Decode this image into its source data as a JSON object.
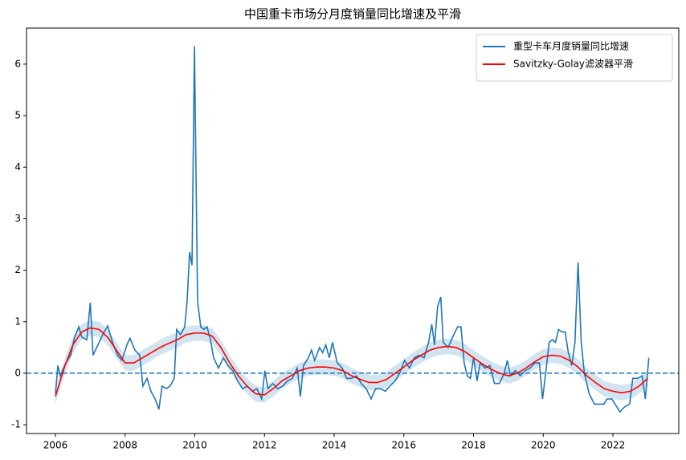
{
  "chart_data": {
    "type": "line",
    "title": "中国重卡市场分月度销量同比增速及平滑",
    "xlim": [
      2005.17,
      2023.89
    ],
    "ylim": [
      -1.17,
      6.7
    ],
    "xticks": [
      2006,
      2008,
      2010,
      2012,
      2014,
      2016,
      2018,
      2020,
      2022
    ],
    "yticks": [
      -1,
      0,
      1,
      2,
      3,
      4,
      5,
      6
    ],
    "legend": "upper right",
    "hline": {
      "value": 0,
      "color": "#1f77b4",
      "style": "dashed"
    },
    "series": [
      {
        "name": "重型卡车月度销量同比增速",
        "color": "#1f77b4",
        "x": [
          2006.0,
          2006.07,
          2006.14,
          2006.3,
          2006.44,
          2006.55,
          2006.67,
          2006.76,
          2006.9,
          2007.0,
          2007.08,
          2007.22,
          2007.36,
          2007.5,
          2007.64,
          2007.78,
          2007.91,
          2008.05,
          2008.14,
          2008.28,
          2008.42,
          2008.51,
          2008.63,
          2008.74,
          2008.86,
          2008.97,
          2009.06,
          2009.18,
          2009.29,
          2009.41,
          2009.48,
          2009.59,
          2009.71,
          2009.78,
          2009.85,
          2009.92,
          2009.99,
          2010.08,
          2010.17,
          2010.26,
          2010.35,
          2010.45,
          2010.54,
          2010.68,
          2010.82,
          2010.95,
          2011.09,
          2011.23,
          2011.37,
          2011.51,
          2011.65,
          2011.78,
          2011.92,
          2012.01,
          2012.1,
          2012.24,
          2012.38,
          2012.52,
          2012.66,
          2012.8,
          2012.94,
          2013.03,
          2013.12,
          2013.26,
          2013.35,
          2013.44,
          2013.58,
          2013.67,
          2013.76,
          2013.86,
          2013.95,
          2014.09,
          2014.23,
          2014.36,
          2014.5,
          2014.64,
          2014.78,
          2014.92,
          2015.06,
          2015.19,
          2015.33,
          2015.47,
          2015.6,
          2015.75,
          2015.88,
          2016.02,
          2016.16,
          2016.3,
          2016.44,
          2016.58,
          2016.71,
          2016.8,
          2016.88,
          2016.97,
          2017.06,
          2017.13,
          2017.27,
          2017.4,
          2017.54,
          2017.64,
          2017.73,
          2017.82,
          2017.91,
          2018.0,
          2018.1,
          2018.19,
          2018.33,
          2018.47,
          2018.6,
          2018.74,
          2018.88,
          2018.97,
          2019.06,
          2019.2,
          2019.34,
          2019.48,
          2019.62,
          2019.76,
          2019.89,
          2019.98,
          2020.07,
          2020.17,
          2020.26,
          2020.35,
          2020.44,
          2020.54,
          2020.63,
          2020.72,
          2020.82,
          2020.91,
          2021.0,
          2021.09,
          2021.18,
          2021.32,
          2021.47,
          2021.61,
          2021.74,
          2021.83,
          2021.97,
          2022.11,
          2022.2,
          2022.34,
          2022.48,
          2022.57,
          2022.71,
          2022.84,
          2022.93,
          2023.03
        ],
        "values": [
          -0.4,
          0.15,
          -0.05,
          0.2,
          0.35,
          0.7,
          0.9,
          0.7,
          0.65,
          1.37,
          0.35,
          0.55,
          0.75,
          0.92,
          0.6,
          0.35,
          0.25,
          0.55,
          0.68,
          0.45,
          0.35,
          -0.25,
          -0.1,
          -0.35,
          -0.5,
          -0.7,
          -0.25,
          -0.3,
          -0.25,
          -0.1,
          0.85,
          0.75,
          0.9,
          1.4,
          2.35,
          2.1,
          6.35,
          1.4,
          0.9,
          0.85,
          0.9,
          0.65,
          0.3,
          0.1,
          0.3,
          0.15,
          0.05,
          -0.15,
          -0.3,
          -0.25,
          -0.35,
          -0.3,
          -0.5,
          0.05,
          -0.3,
          -0.2,
          -0.3,
          -0.25,
          -0.15,
          -0.1,
          0.1,
          -0.45,
          0.15,
          0.3,
          0.45,
          0.25,
          0.5,
          0.4,
          0.55,
          0.3,
          0.6,
          0.2,
          0.1,
          -0.1,
          -0.1,
          -0.05,
          -0.2,
          -0.3,
          -0.5,
          -0.3,
          -0.3,
          -0.35,
          -0.25,
          -0.15,
          0.0,
          0.25,
          0.1,
          0.3,
          0.35,
          0.3,
          0.6,
          0.95,
          0.55,
          1.3,
          1.48,
          0.6,
          0.5,
          0.7,
          0.9,
          0.9,
          0.2,
          -0.05,
          -0.1,
          0.3,
          -0.15,
          0.2,
          0.1,
          0.15,
          -0.2,
          -0.2,
          0.0,
          0.25,
          -0.05,
          0.05,
          -0.05,
          0.05,
          0.1,
          0.2,
          0.2,
          -0.5,
          0.0,
          0.6,
          0.65,
          0.6,
          0.85,
          0.8,
          0.8,
          0.4,
          0.15,
          0.6,
          2.15,
          0.6,
          0.0,
          -0.4,
          -0.6,
          -0.6,
          -0.6,
          -0.5,
          -0.5,
          -0.65,
          -0.75,
          -0.65,
          -0.6,
          -0.1,
          -0.1,
          -0.05,
          -0.5,
          0.3
        ]
      },
      {
        "name": "Savitzky-Golay滤波器平滑",
        "color": "#ff0000",
        "band": 0.15,
        "band_color": "#1f77b4",
        "x": [
          2006.0,
          2006.25,
          2006.5,
          2006.75,
          2007.0,
          2007.25,
          2007.5,
          2007.75,
          2008.0,
          2008.25,
          2008.5,
          2008.75,
          2009.0,
          2009.25,
          2009.5,
          2009.75,
          2010.0,
          2010.25,
          2010.5,
          2010.75,
          2011.0,
          2011.25,
          2011.5,
          2011.75,
          2012.0,
          2012.25,
          2012.5,
          2012.75,
          2013.0,
          2013.25,
          2013.5,
          2013.75,
          2014.0,
          2014.25,
          2014.5,
          2014.75,
          2015.0,
          2015.25,
          2015.5,
          2015.75,
          2016.0,
          2016.25,
          2016.5,
          2016.75,
          2017.0,
          2017.25,
          2017.5,
          2017.75,
          2018.0,
          2018.25,
          2018.5,
          2018.75,
          2019.0,
          2019.25,
          2019.5,
          2019.75,
          2020.0,
          2020.25,
          2020.5,
          2020.75,
          2021.0,
          2021.25,
          2021.5,
          2021.75,
          2022.0,
          2022.25,
          2022.5,
          2022.75,
          2023.0
        ],
        "values": [
          -0.45,
          0.1,
          0.55,
          0.8,
          0.88,
          0.85,
          0.7,
          0.45,
          0.2,
          0.2,
          0.3,
          0.4,
          0.5,
          0.58,
          0.65,
          0.75,
          0.78,
          0.78,
          0.72,
          0.5,
          0.2,
          -0.05,
          -0.25,
          -0.4,
          -0.42,
          -0.3,
          -0.15,
          -0.05,
          0.05,
          0.1,
          0.12,
          0.12,
          0.1,
          0.05,
          -0.05,
          -0.12,
          -0.18,
          -0.18,
          -0.12,
          0.0,
          0.12,
          0.25,
          0.35,
          0.45,
          0.5,
          0.52,
          0.5,
          0.42,
          0.3,
          0.18,
          0.08,
          0.0,
          -0.05,
          0.0,
          0.1,
          0.22,
          0.32,
          0.35,
          0.33,
          0.25,
          0.12,
          -0.05,
          -0.18,
          -0.3,
          -0.35,
          -0.38,
          -0.35,
          -0.25,
          -0.1
        ]
      }
    ]
  }
}
